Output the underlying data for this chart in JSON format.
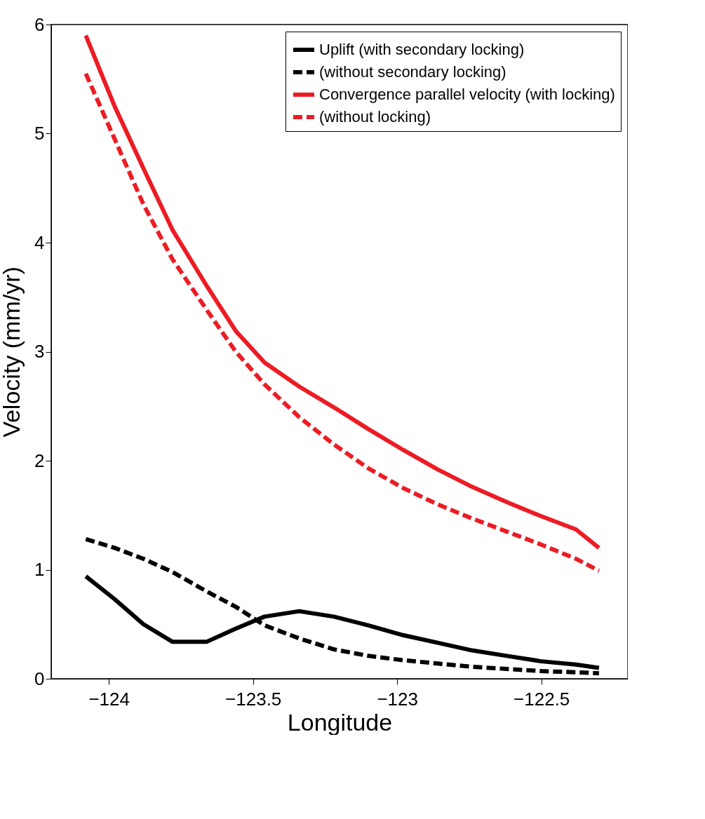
{
  "chart_data": {
    "type": "line",
    "xlabel": "Longitude",
    "ylabel": "Velocity (mm/yr)",
    "x": [
      -124.08,
      -123.98,
      -123.88,
      -123.78,
      -123.66,
      -123.56,
      -123.46,
      -123.34,
      -123.22,
      -123.1,
      -122.98,
      -122.86,
      -122.74,
      -122.62,
      -122.5,
      -122.38,
      -122.3
    ],
    "series": [
      {
        "name": "Uplift (with secondary locking)",
        "color": "#000000",
        "line_style": "solid",
        "values": [
          0.94,
          0.73,
          0.5,
          0.34,
          0.34,
          0.46,
          0.57,
          0.62,
          0.57,
          0.49,
          0.4,
          0.33,
          0.26,
          0.21,
          0.16,
          0.13,
          0.1
        ]
      },
      {
        "name": "(without secondary locking)",
        "color": "#000000",
        "line_style": "dashed",
        "values": [
          1.28,
          1.2,
          1.1,
          0.98,
          0.8,
          0.66,
          0.49,
          0.37,
          0.27,
          0.21,
          0.17,
          0.14,
          0.11,
          0.09,
          0.07,
          0.06,
          0.05
        ]
      },
      {
        "name": "Convergence parallel velocity (with locking)",
        "color": "#ec1c24",
        "line_style": "solid",
        "values": [
          5.9,
          5.25,
          4.68,
          4.12,
          3.6,
          3.19,
          2.9,
          2.68,
          2.49,
          2.29,
          2.1,
          1.92,
          1.76,
          1.62,
          1.49,
          1.37,
          1.2
        ]
      },
      {
        "name": "(without locking)",
        "color": "#ec1c24",
        "line_style": "dashed",
        "values": [
          5.55,
          4.95,
          4.35,
          3.85,
          3.38,
          3.0,
          2.7,
          2.4,
          2.15,
          1.93,
          1.75,
          1.6,
          1.47,
          1.35,
          1.23,
          1.1,
          0.99
        ]
      }
    ],
    "xlim": [
      -124.2,
      -122.2
    ],
    "xticks": [
      -124,
      -123.5,
      -123,
      -122.5
    ],
    "ylim": [
      0,
      6
    ],
    "yticks": [
      0,
      1,
      2,
      3,
      4,
      5,
      6
    ],
    "grid": false,
    "legend": "top right",
    "marker": "none"
  }
}
